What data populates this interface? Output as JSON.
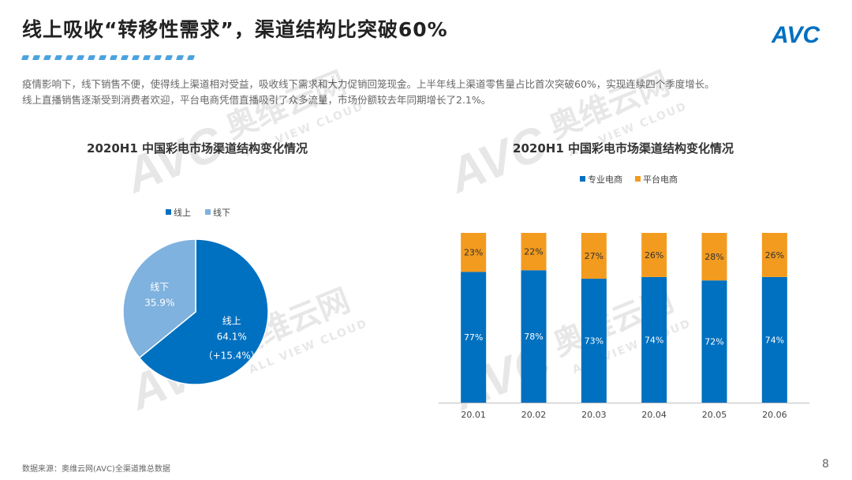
{
  "page": {
    "title": "线上吸收“转移性需求”，渠道结构比突破60%",
    "logo_text": "AVC",
    "description": [
      "疫情影响下，线下销售不便，使得线上渠道相对受益，吸收线下需求和大力促销回笼现金。上半年线上渠道零售量占比首次突破60%，实现连续四个季度增长。",
      "线上直播销售逐渐受到消费者欢迎，平台电商凭借直播吸引了众多流量，市场份额较去年同期增长了2.1%。"
    ],
    "source": "数据来源：奥维云网(AVC)全渠道推总数据",
    "page_number": "8",
    "watermark_cn": "奥维云网",
    "watermark_en": "ALL VIEW CLOUD"
  },
  "colors": {
    "primary": "#0070c0",
    "light": "#7fb2de",
    "orange": "#f39b1f",
    "accent": "#4aa3df"
  },
  "chart_data": [
    {
      "type": "pie",
      "title": "2020H1 中国彩电市场渠道结构变化情况",
      "legend": "top-center",
      "slices": [
        {
          "name": "线上",
          "value": 64.1,
          "label": "64.1%",
          "note": "（+15.4%）",
          "color": "#0070c0"
        },
        {
          "name": "线下",
          "value": 35.9,
          "label": "35.9%",
          "note": "",
          "color": "#7fb2de"
        }
      ]
    },
    {
      "type": "bar",
      "stacked": true,
      "title": "2020H1 中国彩电市场渠道结构变化情况",
      "legend": "top-center",
      "categories": [
        "20.01",
        "20.02",
        "20.03",
        "20.04",
        "20.05",
        "20.06"
      ],
      "ylim": [
        0,
        100
      ],
      "series": [
        {
          "name": "专业电商",
          "color": "#0070c0",
          "values": [
            77,
            78,
            73,
            74,
            72,
            74
          ],
          "labels": [
            "77%",
            "78%",
            "73%",
            "74%",
            "72%",
            "74%"
          ]
        },
        {
          "name": "平台电商",
          "color": "#f39b1f",
          "values": [
            23,
            22,
            27,
            26,
            28,
            26
          ],
          "labels": [
            "23%",
            "22%",
            "27%",
            "26%",
            "28%",
            "26%"
          ]
        }
      ]
    }
  ]
}
